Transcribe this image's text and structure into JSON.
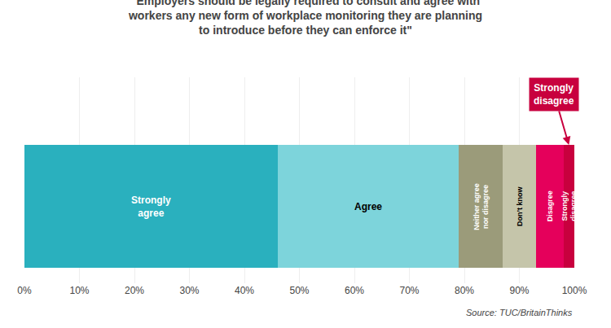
{
  "chart_data": {
    "type": "bar",
    "orientation": "horizontal",
    "stacked": true,
    "title": "\"Employers should be legally required to consult and agree with\nworkers any new form of workplace monitoring they are planning\nto introduce before they can enforce it\"",
    "categories": [
      null
    ],
    "series": [
      {
        "name": "Strongly\nagree",
        "color": "#2ab0be",
        "values": [
          46
        ]
      },
      {
        "name": "Agree",
        "color": "#7dd4db",
        "values": [
          33
        ]
      },
      {
        "name": "Neither agree\nnor disagree",
        "color": "#9b9b7a",
        "values": [
          8
        ]
      },
      {
        "name": "Don’t know",
        "color": "#c5c5aa",
        "values": [
          6
        ]
      },
      {
        "name": "Disagree",
        "color": "#e5005b",
        "values": [
          5
        ]
      },
      {
        "name": "Strongly\ndisagree",
        "color": "#c8003e",
        "values": [
          2
        ]
      }
    ],
    "xlim": [
      0,
      100
    ],
    "xticks": [
      {
        "value": 0,
        "label": "0%"
      },
      {
        "value": 10,
        "label": "10%"
      },
      {
        "value": 20,
        "label": "20%"
      },
      {
        "value": 30,
        "label": "30%"
      },
      {
        "value": 40,
        "label": "40%"
      },
      {
        "value": 50,
        "label": "50%"
      },
      {
        "value": 60,
        "label": "60%"
      },
      {
        "value": 70,
        "label": "70%"
      },
      {
        "value": 80,
        "label": "80%"
      },
      {
        "value": 90,
        "label": "90%"
      },
      {
        "value": 100,
        "label": "100%"
      }
    ],
    "grid": true,
    "tick_labels": "x",
    "annotations": [
      "Strongly\ndisagree"
    ],
    "source": "Source: TUC/BritainThinks"
  }
}
